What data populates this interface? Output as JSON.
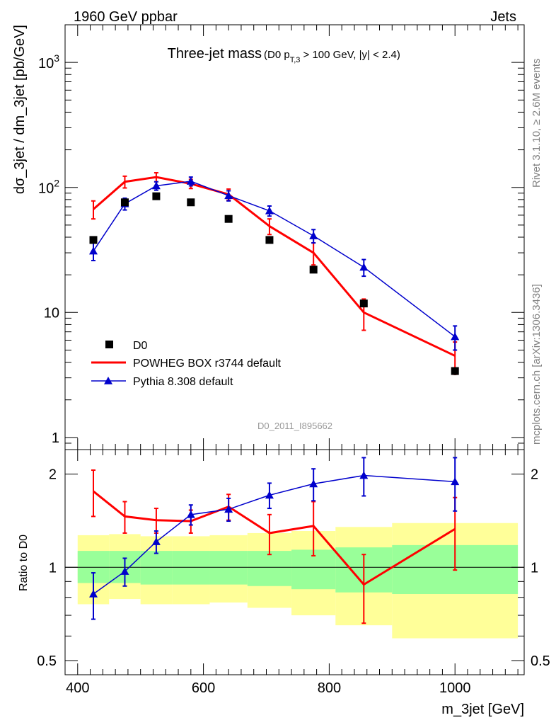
{
  "header": {
    "left": "1960 GeV ppbar",
    "right": "Jets"
  },
  "side_labels": {
    "rivet": "Rivet 3.1.10, ≥ 2.6M events",
    "source": "mcplots.cern.ch [arXiv:1306.3436]"
  },
  "colors": {
    "data": "#000000",
    "powheg": "#ff0000",
    "pythia": "#0000cc",
    "band_inner": "#99ff99",
    "band_outer": "#ffff99"
  },
  "chart_data": [
    {
      "type": "line",
      "title": "Three-jet mass",
      "subtitle_parts": {
        "pre": "(D0 p",
        "sub": "T,3",
        "post": " > 100 GeV, |y| < 2.4)"
      },
      "ylabel": "dσ_3jet / dm_3jet [pb/GeV]",
      "xlabel": "",
      "yscale": "log",
      "ylim": [
        0.8,
        2000
      ],
      "xlim": [
        380,
        1110
      ],
      "y_ticks": [
        {
          "value": 1,
          "label": "1"
        },
        {
          "value": 10,
          "label": "10"
        },
        {
          "value": 100,
          "label": "10²"
        },
        {
          "value": 1000,
          "label": "10³"
        }
      ],
      "x": [
        425,
        475,
        525,
        580,
        640,
        705,
        775,
        855,
        1000
      ],
      "watermark": "D0_2011_I895662",
      "legend_position": "lower-left",
      "series": [
        {
          "name": "D0",
          "style": "markers",
          "values": [
            38,
            76,
            85,
            76,
            56,
            38,
            22,
            11.8,
            3.4
          ],
          "err_low": [
            1.5,
            2.5,
            2.5,
            2.5,
            2,
            1.5,
            1,
            0.6,
            0.25
          ],
          "err_high": [
            1.5,
            2.5,
            2.5,
            2.5,
            2,
            1.5,
            1,
            0.6,
            0.25
          ]
        },
        {
          "name": "POWHEG BOX r3744 default",
          "style": "line",
          "values": [
            67,
            111,
            121,
            107,
            88,
            49,
            30,
            10,
            4.5
          ],
          "err_low": [
            11,
            12,
            10,
            9,
            9,
            7,
            6,
            2.8,
            1.3
          ],
          "err_high": [
            11,
            12,
            10,
            9,
            9,
            7,
            6,
            2.8,
            1.3
          ]
        },
        {
          "name": "Pythia 8.308 default",
          "style": "line-markers",
          "values": [
            31,
            74,
            103,
            112,
            86,
            65,
            41,
            23,
            6.4
          ],
          "err_low": [
            5,
            8,
            8,
            9,
            8,
            6,
            5,
            3.5,
            1.4
          ],
          "err_high": [
            5,
            8,
            8,
            9,
            8,
            6,
            5,
            3.5,
            1.4
          ]
        }
      ]
    },
    {
      "type": "line",
      "title": "",
      "ylabel": "Ratio to D0",
      "xlabel": "m_3jet [GeV]",
      "yscale": "log",
      "ylim": [
        0.45,
        2.4
      ],
      "xlim": [
        380,
        1110
      ],
      "y_ticks": [
        {
          "value": 0.5,
          "label": "0.5"
        },
        {
          "value": 1,
          "label": "1"
        },
        {
          "value": 2,
          "label": "2"
        }
      ],
      "x_ticks": [
        400,
        600,
        800,
        1000
      ],
      "x": [
        425,
        475,
        525,
        580,
        640,
        705,
        775,
        855,
        1000
      ],
      "bands": {
        "edges": [
          400,
          450,
          500,
          550,
          610,
          670,
          740,
          810,
          900,
          1100
        ],
        "inner_low": [
          0.89,
          0.89,
          0.88,
          0.88,
          0.88,
          0.87,
          0.85,
          0.83,
          0.82
        ],
        "inner_high": [
          1.13,
          1.13,
          1.13,
          1.13,
          1.13,
          1.13,
          1.14,
          1.16,
          1.18
        ],
        "outer_low": [
          0.76,
          0.79,
          0.76,
          0.76,
          0.77,
          0.74,
          0.7,
          0.65,
          0.59
        ],
        "outer_high": [
          1.27,
          1.28,
          1.26,
          1.26,
          1.27,
          1.29,
          1.31,
          1.35,
          1.39
        ]
      },
      "series": [
        {
          "name": "POWHEG BOX r3744 default",
          "values": [
            1.76,
            1.46,
            1.42,
            1.41,
            1.57,
            1.29,
            1.36,
            0.88,
            1.33
          ],
          "err_low": [
            0.3,
            0.17,
            0.13,
            0.12,
            0.15,
            0.19,
            0.27,
            0.22,
            0.35
          ],
          "err_high": [
            0.3,
            0.17,
            0.13,
            0.12,
            0.15,
            0.19,
            0.27,
            0.22,
            0.35
          ]
        },
        {
          "name": "Pythia 8.308 default",
          "values": [
            0.82,
            0.97,
            1.21,
            1.48,
            1.54,
            1.71,
            1.86,
            1.98,
            1.89
          ],
          "err_low": [
            0.14,
            0.1,
            0.1,
            0.11,
            0.13,
            0.16,
            0.22,
            0.28,
            0.37
          ],
          "err_high": [
            0.14,
            0.1,
            0.1,
            0.11,
            0.13,
            0.16,
            0.22,
            0.28,
            0.37
          ]
        }
      ]
    }
  ]
}
